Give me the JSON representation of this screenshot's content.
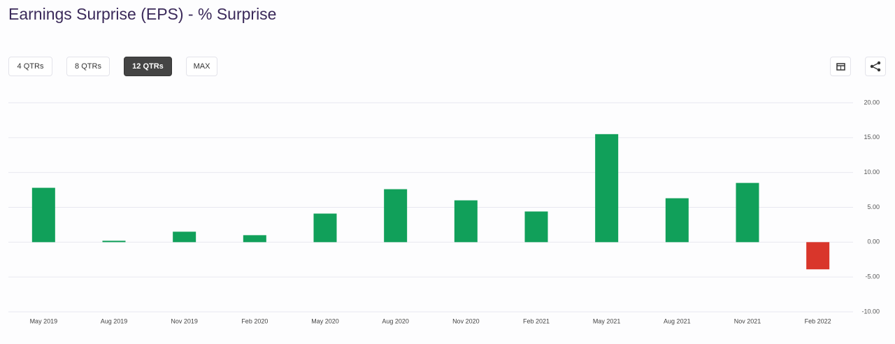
{
  "buttons": [
    "4 QTRs",
    "8 QTRs",
    "12 QTRs",
    "MAX"
  ],
  "active_button": 2,
  "chart_data": {
    "type": "bar",
    "title": "Earnings Surprise (EPS) - % Surprise",
    "categories": [
      "May 2019",
      "Aug 2019",
      "Nov 2019",
      "Feb 2020",
      "May 2020",
      "Aug 2020",
      "Nov 2020",
      "Feb 2021",
      "May 2021",
      "Aug 2021",
      "Nov 2021",
      "Feb 2022"
    ],
    "values": [
      7.8,
      0.2,
      1.5,
      1.0,
      4.1,
      7.6,
      6.0,
      4.4,
      15.5,
      6.3,
      8.5,
      -3.9
    ],
    "color": "#11a05a",
    "negative_color": "#d9362b",
    "ylim": [
      -10,
      20
    ],
    "yticks": [
      {
        "value": -10,
        "label": "-10.00"
      },
      {
        "value": -5,
        "label": "-5.00"
      },
      {
        "value": 0,
        "label": "0.00"
      },
      {
        "value": 5,
        "label": "5.00"
      },
      {
        "value": 10,
        "label": "10.00"
      },
      {
        "value": 15,
        "label": "15.00"
      },
      {
        "value": 20,
        "label": "20.00"
      }
    ],
    "grid": true
  }
}
